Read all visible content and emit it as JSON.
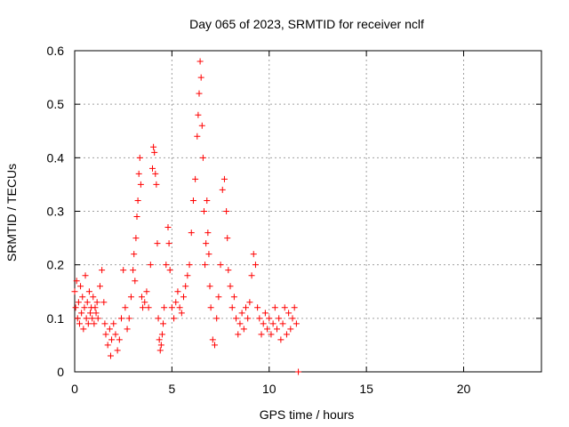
{
  "chart_data": {
    "type": "scatter",
    "title": "Day 065 of 2023, SRMTID for receiver nclf",
    "xlabel": "GPS time / hours",
    "ylabel": "SRMTID / TECUs",
    "xlim": [
      0,
      24
    ],
    "ylim": [
      0,
      0.6
    ],
    "x_ticks": [
      0,
      5,
      10,
      15,
      20
    ],
    "y_ticks": [
      0,
      0.1,
      0.2,
      0.3,
      0.4,
      0.5,
      0.6
    ],
    "x_tick_labels": [
      "0",
      "5",
      "10",
      "15",
      "20"
    ],
    "y_tick_labels": [
      "0",
      "0.1",
      "0.2",
      "0.3",
      "0.4",
      "0.5",
      "0.6"
    ],
    "grid": true,
    "marker": "+",
    "color": "#ff0000",
    "series": [
      {
        "name": "SRMTID",
        "x": [
          0.0,
          0.05,
          0.1,
          0.15,
          0.2,
          0.25,
          0.3,
          0.35,
          0.4,
          0.45,
          0.5,
          0.55,
          0.6,
          0.65,
          0.7,
          0.75,
          0.8,
          0.85,
          0.9,
          0.95,
          1.0,
          1.05,
          1.1,
          1.15,
          1.2,
          1.3,
          1.4,
          1.5,
          1.55,
          1.6,
          1.7,
          1.8,
          1.85,
          1.9,
          2.0,
          2.1,
          2.2,
          2.3,
          2.4,
          2.5,
          2.6,
          2.7,
          2.8,
          2.9,
          3.0,
          3.05,
          3.1,
          3.15,
          3.2,
          3.25,
          3.3,
          3.35,
          3.4,
          3.45,
          3.5,
          3.6,
          3.7,
          3.8,
          3.9,
          4.0,
          4.05,
          4.1,
          4.15,
          4.2,
          4.25,
          4.3,
          4.35,
          4.4,
          4.45,
          4.5,
          4.55,
          4.6,
          4.7,
          4.8,
          4.85,
          4.9,
          5.0,
          5.1,
          5.2,
          5.3,
          5.4,
          5.5,
          5.6,
          5.7,
          5.8,
          5.9,
          6.0,
          6.1,
          6.2,
          6.3,
          6.35,
          6.4,
          6.45,
          6.5,
          6.55,
          6.6,
          6.65,
          6.7,
          6.75,
          6.8,
          6.85,
          6.9,
          6.95,
          7.0,
          7.1,
          7.2,
          7.3,
          7.4,
          7.5,
          7.6,
          7.7,
          7.8,
          7.85,
          7.9,
          8.0,
          8.1,
          8.2,
          8.3,
          8.4,
          8.5,
          8.6,
          8.7,
          8.8,
          8.9,
          9.0,
          9.1,
          9.2,
          9.3,
          9.4,
          9.5,
          9.6,
          9.7,
          9.8,
          9.9,
          10.0,
          10.1,
          10.2,
          10.3,
          10.4,
          10.5,
          10.6,
          10.7,
          10.8,
          10.9,
          11.0,
          11.1,
          11.2,
          11.3,
          11.4,
          11.5
        ],
        "y": [
          0.15,
          0.12,
          0.17,
          0.1,
          0.13,
          0.09,
          0.16,
          0.11,
          0.14,
          0.08,
          0.12,
          0.18,
          0.1,
          0.13,
          0.09,
          0.15,
          0.11,
          0.12,
          0.1,
          0.14,
          0.09,
          0.12,
          0.11,
          0.13,
          0.1,
          0.16,
          0.19,
          0.13,
          0.09,
          0.07,
          0.05,
          0.08,
          0.03,
          0.06,
          0.09,
          0.07,
          0.04,
          0.06,
          0.1,
          0.19,
          0.12,
          0.08,
          0.1,
          0.14,
          0.19,
          0.22,
          0.17,
          0.25,
          0.29,
          0.32,
          0.37,
          0.4,
          0.35,
          0.14,
          0.12,
          0.13,
          0.15,
          0.12,
          0.2,
          0.38,
          0.42,
          0.41,
          0.37,
          0.35,
          0.24,
          0.1,
          0.06,
          0.04,
          0.05,
          0.07,
          0.09,
          0.12,
          0.2,
          0.27,
          0.24,
          0.19,
          0.12,
          0.1,
          0.13,
          0.15,
          0.12,
          0.11,
          0.14,
          0.16,
          0.18,
          0.2,
          0.26,
          0.32,
          0.36,
          0.44,
          0.48,
          0.52,
          0.58,
          0.55,
          0.46,
          0.4,
          0.3,
          0.2,
          0.24,
          0.32,
          0.26,
          0.22,
          0.16,
          0.12,
          0.06,
          0.05,
          0.1,
          0.14,
          0.2,
          0.34,
          0.36,
          0.3,
          0.25,
          0.19,
          0.16,
          0.12,
          0.14,
          0.1,
          0.07,
          0.09,
          0.11,
          0.08,
          0.12,
          0.1,
          0.13,
          0.18,
          0.22,
          0.2,
          0.12,
          0.1,
          0.07,
          0.09,
          0.11,
          0.08,
          0.1,
          0.07,
          0.09,
          0.12,
          0.08,
          0.1,
          0.06,
          0.09,
          0.12,
          0.07,
          0.11,
          0.08,
          0.1,
          0.12,
          0.09,
          0.0
        ]
      }
    ]
  }
}
